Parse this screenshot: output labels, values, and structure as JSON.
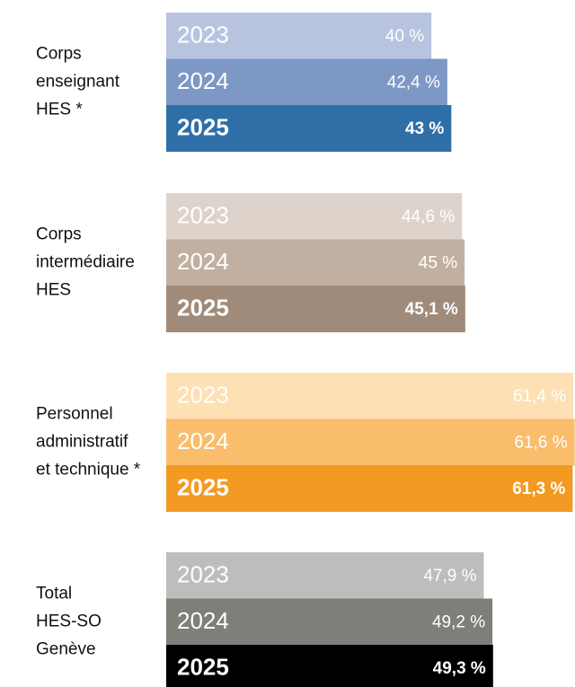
{
  "chart_data": {
    "type": "bar",
    "orientation": "horizontal",
    "series_names": [
      "2023",
      "2024",
      "2025"
    ],
    "groups": [
      {
        "label_lines": [
          "Corps",
          "enseignant",
          "HES *"
        ],
        "colors": [
          "#b8c4df",
          "#7d98c4",
          "#2f6fa8"
        ],
        "values": [
          40,
          42.4,
          43
        ],
        "value_labels": [
          "40 %",
          "42,4 %",
          "43 %"
        ]
      },
      {
        "label_lines": [
          "Corps",
          "intermédiaire",
          "HES"
        ],
        "colors": [
          "#ddd3ca",
          "#c1b0a1",
          "#a08b7a"
        ],
        "values": [
          44.6,
          45,
          45.1
        ],
        "value_labels": [
          "44,6 %",
          "45 %",
          "45,1 %"
        ]
      },
      {
        "label_lines": [
          "Personnel",
          "administratif",
          "et technique *"
        ],
        "colors": [
          "#fde0b4",
          "#f9bd6c",
          "#f39a23"
        ],
        "values": [
          61.4,
          61.6,
          61.3
        ],
        "value_labels": [
          "61,4 %",
          "61,6 %",
          "61,3 %"
        ]
      },
      {
        "label_lines": [
          "Total",
          "HES-SO",
          "Genève"
        ],
        "colors": [
          "#bdbdbb",
          "#7f7e79",
          "#000000"
        ],
        "values": [
          47.9,
          49.2,
          49.3
        ],
        "value_labels": [
          "47,9 %",
          "49,2 %",
          "49,3 %"
        ]
      }
    ]
  }
}
